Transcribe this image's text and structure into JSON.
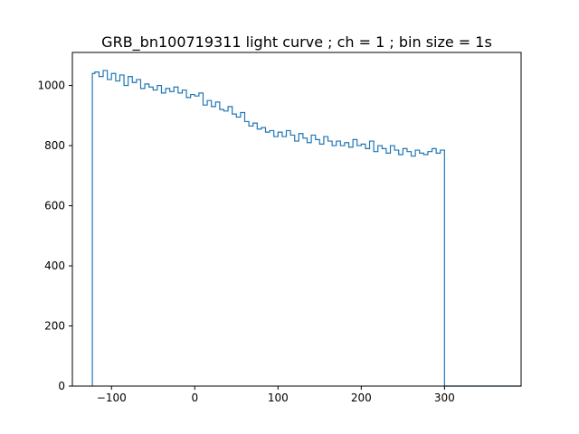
{
  "chart_data": {
    "type": "line",
    "title": "GRB_bn100719311 light curve ; ch = 1 ; bin size = 1s",
    "xlabel": "",
    "ylabel": "",
    "xlim": [
      -147,
      392
    ],
    "ylim": [
      0,
      1110
    ],
    "xticks": [
      -100,
      0,
      100,
      200,
      300
    ],
    "yticks": [
      0,
      200,
      400,
      600,
      800,
      1000
    ],
    "x_tick_labels": [
      "−100",
      "0",
      "100",
      "200",
      "300"
    ],
    "y_tick_labels": [
      "0",
      "200",
      "400",
      "600",
      "800",
      "1000"
    ],
    "grid": false,
    "line_color": "#1f77b4",
    "series": [
      {
        "style": "step",
        "x": [
          -123,
          -120,
          -115,
          -110,
          -105,
          -100,
          -95,
          -90,
          -85,
          -80,
          -75,
          -70,
          -65,
          -60,
          -55,
          -50,
          -45,
          -40,
          -35,
          -30,
          -25,
          -20,
          -15,
          -10,
          -5,
          0,
          5,
          10,
          15,
          20,
          25,
          30,
          35,
          40,
          45,
          50,
          55,
          60,
          65,
          70,
          75,
          80,
          85,
          90,
          95,
          100,
          105,
          110,
          115,
          120,
          125,
          130,
          135,
          140,
          145,
          150,
          155,
          160,
          165,
          170,
          175,
          180,
          185,
          190,
          195,
          200,
          205,
          210,
          215,
          220,
          225,
          230,
          235,
          240,
          245,
          250,
          255,
          260,
          265,
          270,
          275,
          280,
          285,
          290,
          295,
          300
        ],
        "y": [
          1040,
          1045,
          1030,
          1050,
          1020,
          1040,
          1015,
          1035,
          1000,
          1030,
          1010,
          1020,
          990,
          1005,
          995,
          985,
          1000,
          975,
          990,
          980,
          995,
          975,
          985,
          960,
          970,
          965,
          975,
          935,
          950,
          930,
          945,
          920,
          915,
          930,
          905,
          895,
          910,
          880,
          865,
          875,
          855,
          860,
          845,
          850,
          830,
          845,
          830,
          850,
          835,
          815,
          840,
          825,
          810,
          835,
          820,
          805,
          830,
          815,
          800,
          815,
          800,
          810,
          795,
          820,
          800,
          805,
          790,
          815,
          780,
          800,
          790,
          775,
          800,
          785,
          770,
          790,
          780,
          765,
          785,
          775,
          770,
          780,
          790,
          775,
          785,
          740
        ]
      }
    ]
  }
}
